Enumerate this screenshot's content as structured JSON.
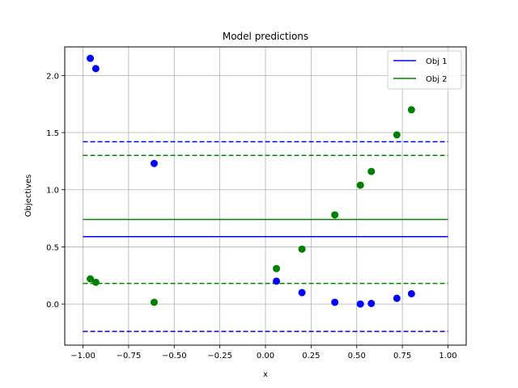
{
  "chart_data": {
    "type": "scatter",
    "title": "Model predictions",
    "xlabel": "x",
    "ylabel": "Objectives",
    "xlim": [
      -1.1,
      1.1
    ],
    "ylim": [
      -0.36,
      2.25
    ],
    "xticks": [
      -1.0,
      -0.75,
      -0.5,
      -0.25,
      0.0,
      0.25,
      0.5,
      0.75,
      1.0
    ],
    "xtick_labels": [
      "−1.00",
      "−0.75",
      "−0.50",
      "−0.25",
      "0.00",
      "0.25",
      "0.50",
      "0.75",
      "1.00"
    ],
    "yticks": [
      0.0,
      0.5,
      1.0,
      1.5,
      2.0
    ],
    "ytick_labels": [
      "0.0",
      "0.5",
      "1.0",
      "1.5",
      "2.0"
    ],
    "grid": true,
    "legend_position": "top-right",
    "series": [
      {
        "name": "Obj 1",
        "color": "#0000ff",
        "mean": 0.59,
        "band": [
          -0.24,
          1.42
        ],
        "points": [
          {
            "x": -0.96,
            "y": 2.15
          },
          {
            "x": -0.93,
            "y": 2.06
          },
          {
            "x": -0.61,
            "y": 1.23
          },
          {
            "x": 0.06,
            "y": 0.2
          },
          {
            "x": 0.2,
            "y": 0.1
          },
          {
            "x": 0.38,
            "y": 0.015
          },
          {
            "x": 0.52,
            "y": 0.0
          },
          {
            "x": 0.58,
            "y": 0.005
          },
          {
            "x": 0.72,
            "y": 0.05
          },
          {
            "x": 0.8,
            "y": 0.09
          }
        ]
      },
      {
        "name": "Obj 2",
        "color": "#008000",
        "mean": 0.74,
        "band": [
          0.18,
          1.3
        ],
        "points": [
          {
            "x": -0.96,
            "y": 0.22
          },
          {
            "x": -0.93,
            "y": 0.19
          },
          {
            "x": -0.61,
            "y": 0.015
          },
          {
            "x": 0.06,
            "y": 0.31
          },
          {
            "x": 0.2,
            "y": 0.48
          },
          {
            "x": 0.38,
            "y": 0.78
          },
          {
            "x": 0.52,
            "y": 1.04
          },
          {
            "x": 0.58,
            "y": 1.16
          },
          {
            "x": 0.72,
            "y": 1.48
          },
          {
            "x": 0.8,
            "y": 1.7
          }
        ]
      }
    ]
  }
}
